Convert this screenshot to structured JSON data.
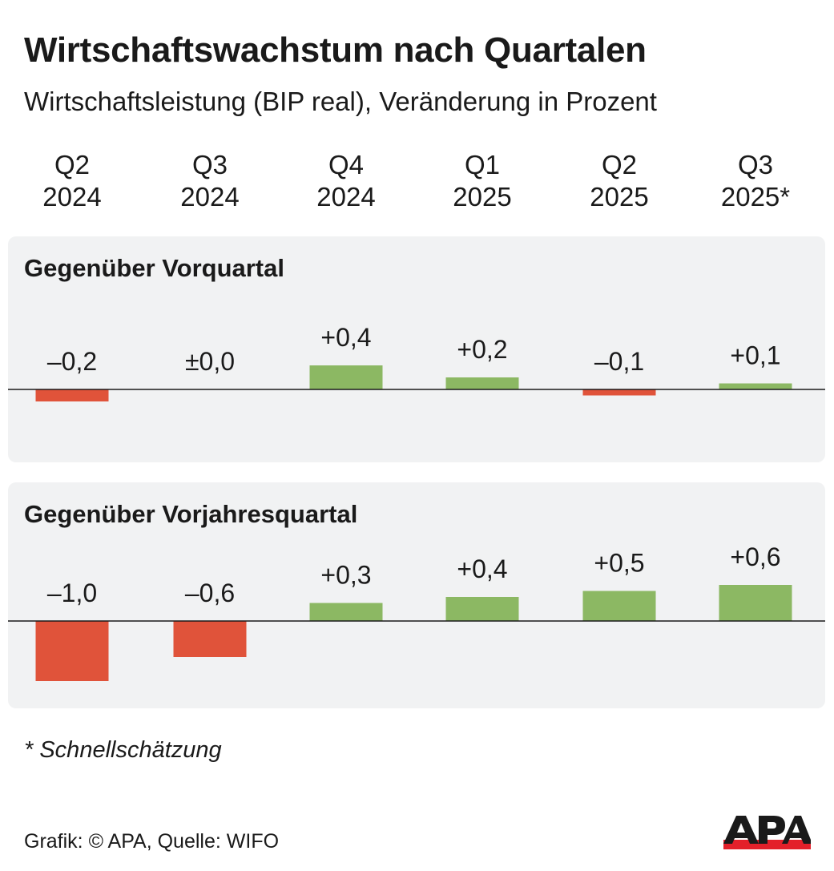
{
  "title": "Wirtschaftswachstum nach Quartalen",
  "subtitle": "Wirtschaftsleistung (BIP real), Veränderung in Prozent",
  "quarters": [
    {
      "q": "Q2",
      "y": "2024"
    },
    {
      "q": "Q3",
      "y": "2024"
    },
    {
      "q": "Q4",
      "y": "2024"
    },
    {
      "q": "Q1",
      "y": "2025"
    },
    {
      "q": "Q2",
      "y": "2025"
    },
    {
      "q": "Q3",
      "y": "2025*"
    }
  ],
  "footnote": "* Schnellschätzung",
  "source": "Grafik: © APA, Quelle: WIFO",
  "logo_text": "APA",
  "colors": {
    "positive": "#8cb863",
    "negative": "#e0533a",
    "panel": "#f1f2f3",
    "logo_red": "#e3202a"
  },
  "chart_data": [
    {
      "type": "bar",
      "title": "Gegenüber Vorquartal",
      "categories": [
        "Q2 2024",
        "Q3 2024",
        "Q4 2024",
        "Q1 2025",
        "Q2 2025",
        "Q3 2025*"
      ],
      "values": [
        -0.2,
        0.0,
        0.4,
        0.2,
        -0.1,
        0.1
      ],
      "labels": [
        "–0,2",
        "±0,0",
        "+0,4",
        "+0,2",
        "–0,1",
        "+0,1"
      ]
    },
    {
      "type": "bar",
      "title": "Gegenüber Vorjahresquartal",
      "categories": [
        "Q2 2024",
        "Q3 2024",
        "Q4 2024",
        "Q1 2025",
        "Q2 2025",
        "Q3 2025*"
      ],
      "values": [
        -1.0,
        -0.6,
        0.3,
        0.4,
        0.5,
        0.6
      ],
      "labels": [
        "–1,0",
        "–0,6",
        "+0,3",
        "+0,4",
        "+0,5",
        "+0,6"
      ]
    }
  ]
}
